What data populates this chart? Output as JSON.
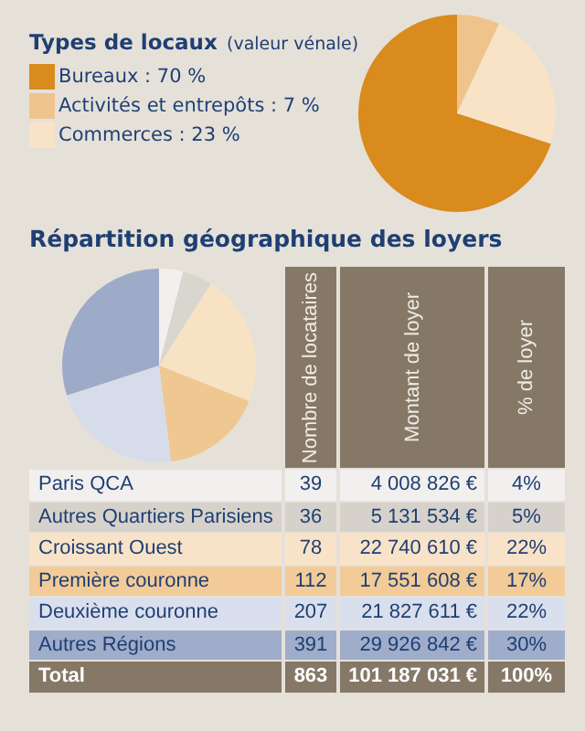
{
  "chart_data": [
    {
      "type": "pie",
      "title": "Types de locaux",
      "subtitle": "(valeur vénale)",
      "categories": [
        "Bureaux",
        "Activités et entrepôts",
        "Commerces"
      ],
      "values": [
        70,
        7,
        23
      ],
      "value_labels": [
        ": 70 %",
        ": 7 %",
        ": 23 %"
      ],
      "colors": [
        "#d98b1e",
        "#efc48c",
        "#f8e3c6"
      ],
      "legend": "top left"
    },
    {
      "type": "pie",
      "title": "Répartition géographique des loyers",
      "categories": [
        null,
        null,
        null,
        null,
        null,
        null
      ],
      "values": [
        4,
        5,
        22,
        17,
        22,
        30
      ],
      "colors": [
        "#f1f0ee",
        "#d9d6cf",
        "#f8e2c4",
        "#efc790",
        "#d6dcea",
        "#9dabc8"
      ],
      "legend": false
    },
    {
      "type": "other",
      "data_labels": true,
      "categories": [
        "Paris QCA",
        "Autres Quartiers Parisiens",
        "Croissant Ouest",
        "Première couronne",
        "Deuxième couronne",
        "Autres Régions",
        "Total"
      ],
      "colors": [
        "#f1f0ee",
        "#d6d2cb",
        "#f9e3c8",
        "#f2cb98",
        "#d9dfec",
        "#9fadca",
        "#857866"
      ],
      "series": [
        {
          "name": "Nombre de locataires",
          "colors": [
            "#f1f0ee",
            "#d6d2cb",
            "#f9e3c8",
            "#f2cb98",
            "#d9dfec",
            "#9fadca",
            "#857866"
          ],
          "values": [
            39,
            36,
            78,
            112,
            207,
            391,
            863
          ]
        },
        {
          "name": "Montant de loyer",
          "colors": [
            "#f1f0ee",
            "#d6d2cb",
            "#f9e3c8",
            "#f2cb98",
            "#d9dfec",
            "#9fadca",
            "#857866"
          ],
          "values": [
            4008826,
            5131534,
            22740610,
            17551608,
            21827611,
            29926842,
            101187031
          ],
          "value_labels": [
            "4 008 826 €",
            "5 131 534 €",
            "22 740 610 €",
            "17 551 608 €",
            "21 827 611 €",
            "29 926 842 €",
            "101 187 031 €"
          ]
        },
        {
          "name": "% de loyer",
          "colors": [
            "#f1f0ee",
            "#d6d2cb",
            "#f9e3c8",
            "#f2cb98",
            "#d9dfec",
            "#9fadca",
            "#857866"
          ],
          "values": [
            4,
            5,
            22,
            17,
            22,
            30,
            100
          ],
          "value_labels": [
            "4%",
            "5%",
            "22%",
            "17%",
            "22%",
            "30%",
            "100%"
          ]
        }
      ]
    }
  ]
}
